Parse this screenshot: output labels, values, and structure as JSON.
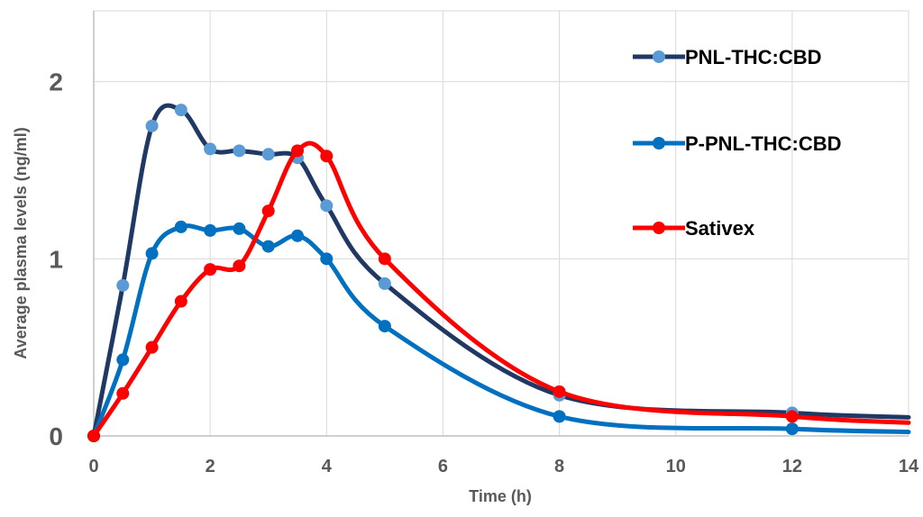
{
  "chart_data": {
    "type": "line",
    "title": "",
    "xlabel": "Time (h)",
    "ylabel": "Average plasma levels (ng/ml)",
    "xlim": [
      0,
      14
    ],
    "ylim": [
      0,
      2.4
    ],
    "x_ticks": [
      0,
      2,
      4,
      6,
      8,
      10,
      12,
      14
    ],
    "y_ticks": [
      0,
      1,
      2
    ],
    "grid": true,
    "legend_position": "right",
    "series": [
      {
        "name": "PNL-THC:CBD",
        "line_color": "#203864",
        "marker_color": "#5B9BD5",
        "x": [
          0,
          0.5,
          1,
          1.5,
          2,
          2.5,
          3,
          3.5,
          4,
          5,
          8,
          12
        ],
        "y": [
          0,
          0.85,
          1.75,
          1.84,
          1.62,
          1.61,
          1.59,
          1.57,
          1.3,
          0.86,
          0.23,
          0.13
        ]
      },
      {
        "name": "P-PNL-THC:CBD",
        "line_color": "#0070C0",
        "marker_color": "#0070C0",
        "x": [
          0,
          0.5,
          1,
          1.5,
          2,
          2.5,
          3,
          3.5,
          4,
          5,
          8,
          12
        ],
        "y": [
          0,
          0.43,
          1.03,
          1.18,
          1.16,
          1.17,
          1.07,
          1.13,
          1.0,
          0.62,
          0.11,
          0.04
        ]
      },
      {
        "name": "Sativex",
        "line_color": "#FF0000",
        "marker_color": "#FF0000",
        "x": [
          0,
          0.5,
          1,
          1.5,
          2,
          2.5,
          3,
          3.5,
          4,
          5,
          8,
          12
        ],
        "y": [
          0,
          0.24,
          0.5,
          0.76,
          0.94,
          0.96,
          1.27,
          1.61,
          1.58,
          1.0,
          0.25,
          0.11
        ]
      }
    ]
  }
}
